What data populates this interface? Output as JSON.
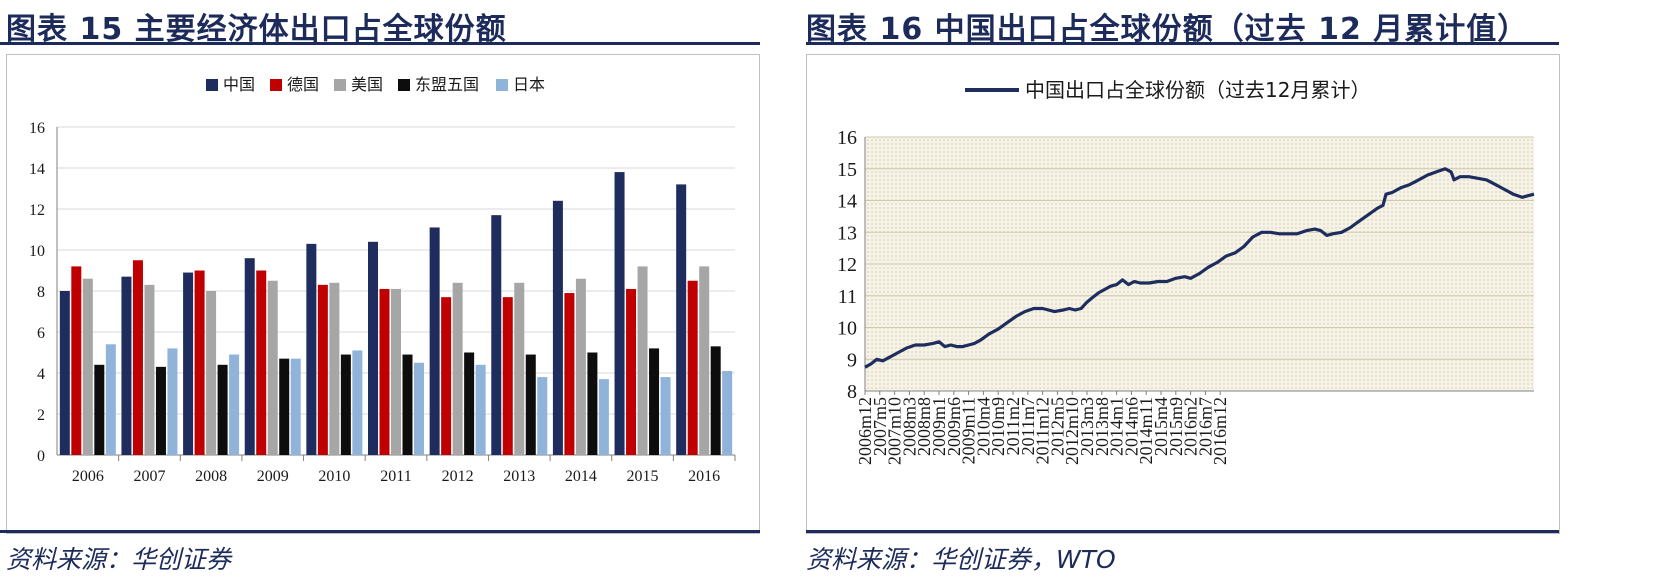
{
  "figures": [
    {
      "title": "图表 15 主要经济体出口占全球份额",
      "source": "资料来源：华创证券"
    },
    {
      "title": "图表 16 中国出口占全球份额（过去 12 月累计值）",
      "source": "资料来源：华创证券，WTO"
    }
  ],
  "chart_data": [
    {
      "type": "bar",
      "title": "",
      "categories": [
        "2006",
        "2007",
        "2008",
        "2009",
        "2010",
        "2011",
        "2012",
        "2013",
        "2014",
        "2015",
        "2016"
      ],
      "series": [
        {
          "name": "中国",
          "color": "#1f2d5e",
          "values": [
            8.0,
            8.7,
            8.9,
            9.6,
            10.3,
            10.4,
            11.1,
            11.7,
            12.4,
            13.8,
            13.2
          ]
        },
        {
          "name": "德国",
          "color": "#c00000",
          "values": [
            9.2,
            9.5,
            9.0,
            9.0,
            8.3,
            8.1,
            7.7,
            7.7,
            7.9,
            8.1,
            8.5
          ]
        },
        {
          "name": "美国",
          "color": "#a6a6a6",
          "values": [
            8.6,
            8.3,
            8.0,
            8.5,
            8.4,
            8.1,
            8.4,
            8.4,
            8.6,
            9.2,
            9.2
          ]
        },
        {
          "name": "东盟五国",
          "color": "#0d0d0d",
          "values": [
            4.4,
            4.3,
            4.4,
            4.7,
            4.9,
            4.9,
            5.0,
            4.9,
            5.0,
            5.2,
            5.3
          ]
        },
        {
          "name": "日本",
          "color": "#8fb3d9",
          "values": [
            5.4,
            5.2,
            4.9,
            4.7,
            5.1,
            4.5,
            4.4,
            3.8,
            3.7,
            3.8,
            4.1
          ]
        }
      ],
      "yticks": [
        "0",
        "2",
        "4",
        "6",
        "8",
        "10",
        "12",
        "14",
        "16"
      ],
      "ylim": [
        0,
        16
      ],
      "legend_position": "top-center",
      "xlabel": "",
      "ylabel": ""
    },
    {
      "type": "line",
      "title": "",
      "series": [
        {
          "name": "中国出口占全球份额（过去12月累计）",
          "color": "#1f2d5e",
          "points": [
            [
              0,
              8.75
            ],
            [
              2,
              8.85
            ],
            [
              4,
              9.0
            ],
            [
              6,
              8.95
            ],
            [
              8,
              9.05
            ],
            [
              11,
              9.2
            ],
            [
              14,
              9.35
            ],
            [
              17,
              9.45
            ],
            [
              20,
              9.45
            ],
            [
              23,
              9.5
            ],
            [
              25,
              9.55
            ],
            [
              27,
              9.4
            ],
            [
              29,
              9.45
            ],
            [
              31,
              9.4
            ],
            [
              33,
              9.4
            ],
            [
              35,
              9.45
            ],
            [
              37,
              9.5
            ],
            [
              39,
              9.6
            ],
            [
              42,
              9.8
            ],
            [
              45,
              9.95
            ],
            [
              48,
              10.15
            ],
            [
              51,
              10.35
            ],
            [
              54,
              10.5
            ],
            [
              57,
              10.6
            ],
            [
              60,
              10.6
            ],
            [
              62,
              10.55
            ],
            [
              64,
              10.5
            ],
            [
              67,
              10.55
            ],
            [
              69,
              10.6
            ],
            [
              71,
              10.55
            ],
            [
              73,
              10.6
            ],
            [
              75,
              10.8
            ],
            [
              77,
              10.95
            ],
            [
              79,
              11.1
            ],
            [
              81,
              11.2
            ],
            [
              83,
              11.3
            ],
            [
              85,
              11.35
            ],
            [
              87,
              11.5
            ],
            [
              89,
              11.35
            ],
            [
              91,
              11.45
            ],
            [
              93,
              11.4
            ],
            [
              96,
              11.4
            ],
            [
              99,
              11.45
            ],
            [
              102,
              11.45
            ],
            [
              105,
              11.55
            ],
            [
              108,
              11.6
            ],
            [
              110,
              11.55
            ],
            [
              113,
              11.7
            ],
            [
              116,
              11.9
            ],
            [
              119,
              12.05
            ],
            [
              122,
              12.25
            ],
            [
              125,
              12.35
            ],
            [
              128,
              12.55
            ],
            [
              131,
              12.85
            ],
            [
              134,
              13.0
            ],
            [
              137,
              13.0
            ],
            [
              140,
              12.95
            ],
            [
              143,
              12.95
            ],
            [
              146,
              12.95
            ],
            [
              149,
              13.05
            ],
            [
              152,
              13.1
            ],
            [
              154,
              13.05
            ],
            [
              156,
              12.9
            ],
            [
              158,
              12.95
            ],
            [
              161,
              13.0
            ],
            [
              164,
              13.15
            ],
            [
              167,
              13.35
            ],
            [
              170,
              13.55
            ],
            [
              173,
              13.75
            ],
            [
              175,
              13.85
            ],
            [
              176,
              14.2
            ],
            [
              178,
              14.25
            ],
            [
              181,
              14.4
            ],
            [
              184,
              14.5
            ],
            [
              187,
              14.65
            ],
            [
              190,
              14.8
            ],
            [
              193,
              14.9
            ],
            [
              196,
              15.0
            ],
            [
              198,
              14.9
            ],
            [
              199,
              14.65
            ],
            [
              201,
              14.75
            ],
            [
              204,
              14.75
            ],
            [
              207,
              14.7
            ],
            [
              210,
              14.65
            ],
            [
              213,
              14.5
            ],
            [
              216,
              14.35
            ],
            [
              219,
              14.2
            ],
            [
              222,
              14.1
            ],
            [
              224,
              14.15
            ],
            [
              226,
              14.2
            ]
          ]
        }
      ],
      "x_tick_labels": [
        "2006m12",
        "2007m5",
        "2007m10",
        "2008m3",
        "2008m8",
        "2009m1",
        "2009m6",
        "2009m11",
        "2010m4",
        "2010m9",
        "2011m2",
        "2011m7",
        "2011m12",
        "2012m5",
        "2012m10",
        "2013m3",
        "2013m8",
        "2014m1",
        "2014m6",
        "2014m11",
        "2015m4",
        "2015m9",
        "2016m2",
        "2016m7",
        "2016m12"
      ],
      "x_tick_step": 5,
      "xlim": [
        0,
        226
      ],
      "yticks": [
        "8",
        "9",
        "10",
        "11",
        "12",
        "13",
        "14",
        "15",
        "16"
      ],
      "ylim": [
        8,
        16
      ],
      "legend_position": "top-center",
      "grid": true,
      "xlabel": "",
      "ylabel": ""
    }
  ]
}
